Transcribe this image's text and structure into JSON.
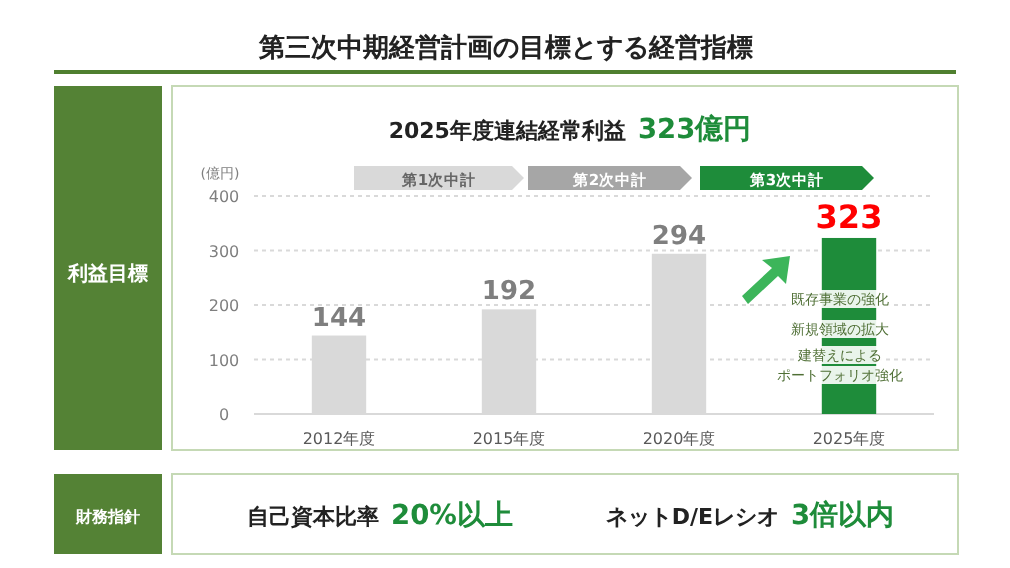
{
  "chart_data": {
    "type": "bar",
    "title": "第三次中期経営計画の目標とする経営指標",
    "subtitle": "2025年度連結経常利益 323億円",
    "ylabel": "(億円)",
    "categories": [
      "2012年度",
      "2015年度",
      "2020年度",
      "2025年度"
    ],
    "values": [
      144,
      192,
      294,
      323
    ],
    "colors": [
      "#d9d9d9",
      "#d9d9d9",
      "#d9d9d9",
      "#1e8c3a"
    ],
    "ylim": [
      0,
      400
    ],
    "yticks": [
      0,
      100,
      200,
      300,
      400
    ],
    "grid": "y",
    "data_labels": true,
    "annotations": [
      "第1次中計",
      "第2次中計",
      "第3次中計",
      "既存事業の強化",
      "新規領域の拡大",
      "建替えによる",
      "ポートフォリオ強化",
      "利益目標",
      "財務指針",
      "自己資本比率 20%以上",
      "ネットD/Eレシオ 3倍以内"
    ]
  }
}
